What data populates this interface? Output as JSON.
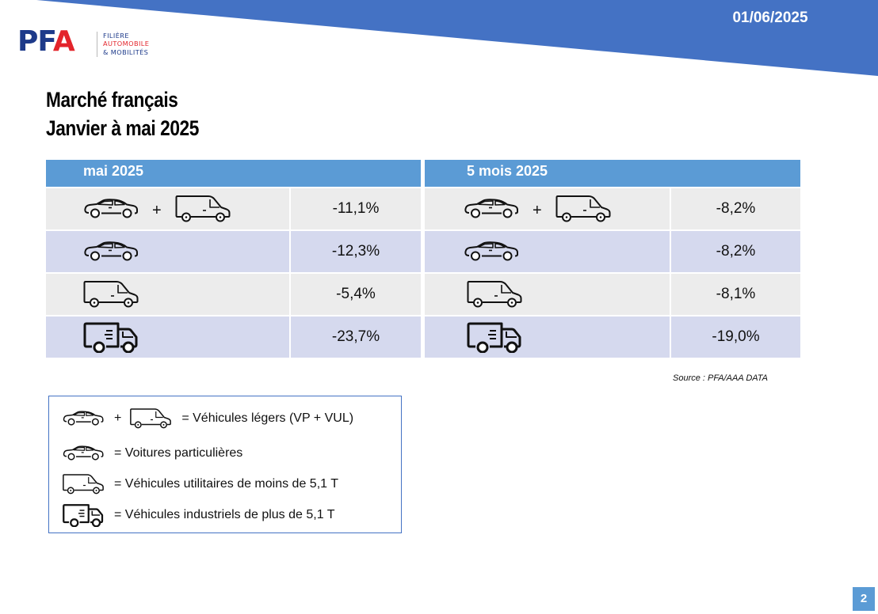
{
  "header": {
    "date": "01/06/2025",
    "band_color": "#4472c4",
    "logo": {
      "mark_left": "PF",
      "mark_right": "A",
      "subtitle_line1": "FILIÈRE",
      "subtitle_line2": "AUTOMOBILE",
      "subtitle_line3": "& MOBILITÉS"
    }
  },
  "title": {
    "line1": "Marché français",
    "line2": "Janvier à mai 2025"
  },
  "table": {
    "header_color": "#5b9bd5",
    "panels": [
      {
        "header": "mai 2025",
        "rows": [
          {
            "icons": [
              "car-icon",
              "van-icon"
            ],
            "value": "-11,1%"
          },
          {
            "icons": [
              "car-icon"
            ],
            "value": "-12,3%"
          },
          {
            "icons": [
              "van-icon"
            ],
            "value": "-5,4%"
          },
          {
            "icons": [
              "truck-icon"
            ],
            "value": "-23,7%"
          }
        ]
      },
      {
        "header": "5 mois 2025",
        "rows": [
          {
            "icons": [
              "car-icon",
              "van-icon"
            ],
            "value": "-8,2%"
          },
          {
            "icons": [
              "car-icon"
            ],
            "value": "-8,2%"
          },
          {
            "icons": [
              "van-icon"
            ],
            "value": "-8,1%"
          },
          {
            "icons": [
              "truck-icon"
            ],
            "value": "-19,0%"
          }
        ]
      }
    ],
    "plus_sign": "+"
  },
  "source": "Source : PFA/AAA DATA",
  "legend": {
    "items": [
      {
        "icons": [
          "car-icon",
          "van-icon"
        ],
        "text": "= Véhicules légers (VP + VUL)"
      },
      {
        "icons": [
          "car-icon"
        ],
        "text": "= Voitures particulières"
      },
      {
        "icons": [
          "van-icon"
        ],
        "text": "= Véhicules utilitaires de moins de 5,1 T"
      },
      {
        "icons": [
          "truck-icon"
        ],
        "text": "= Véhicules industriels de plus de 5,1 T"
      }
    ],
    "plus_sign": "+"
  },
  "page_number": "2"
}
